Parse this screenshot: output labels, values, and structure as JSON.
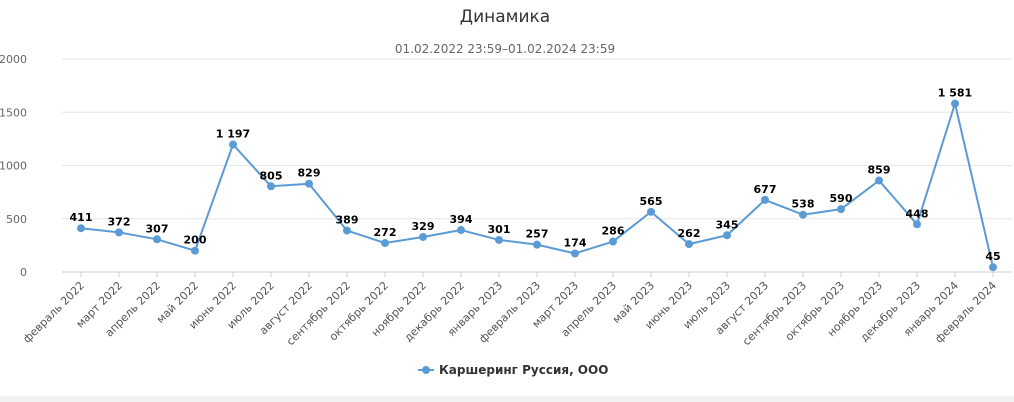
{
  "chart_data": {
    "type": "line",
    "title": "Динамика",
    "subtitle": "01.02.2022 23:59–01.02.2024 23:59",
    "categories": [
      "февраль 2022",
      "март 2022",
      "апрель 2022",
      "май 2022",
      "июнь 2022",
      "июль 2022",
      "август 2022",
      "сентябрь 2022",
      "октябрь 2022",
      "ноябрь 2022",
      "декабрь 2022",
      "январь 2023",
      "февраль 2023",
      "март 2023",
      "апрель 2023",
      "май 2023",
      "июнь 2023",
      "июль 2023",
      "август 2023",
      "сентябрь 2023",
      "октябрь 2023",
      "ноябрь 2023",
      "декабрь 2023",
      "январь 2024",
      "февраль 2024"
    ],
    "series": [
      {
        "name": "Каршеринг Руссия, ООО",
        "values": [
          411,
          372,
          307,
          200,
          1197,
          805,
          829,
          389,
          272,
          329,
          394,
          301,
          257,
          174,
          286,
          565,
          262,
          345,
          677,
          538,
          590,
          859,
          448,
          1581,
          45
        ],
        "labels": [
          "411",
          "372",
          "307",
          "200",
          "1 197",
          "805",
          "829",
          "389",
          "272",
          "329",
          "394",
          "301",
          "257",
          "174",
          "286",
          "565",
          "262",
          "345",
          "677",
          "538",
          "590",
          "859",
          "448",
          "1 581",
          "45"
        ],
        "color": "#5b9bd5"
      }
    ],
    "yticks": [
      "0",
      "500",
      "1000",
      "1500",
      "2000"
    ],
    "ylim": [
      0,
      2000
    ],
    "grid": true,
    "legend_position": "bottom-center",
    "gridColor": "#e6e6e6"
  }
}
